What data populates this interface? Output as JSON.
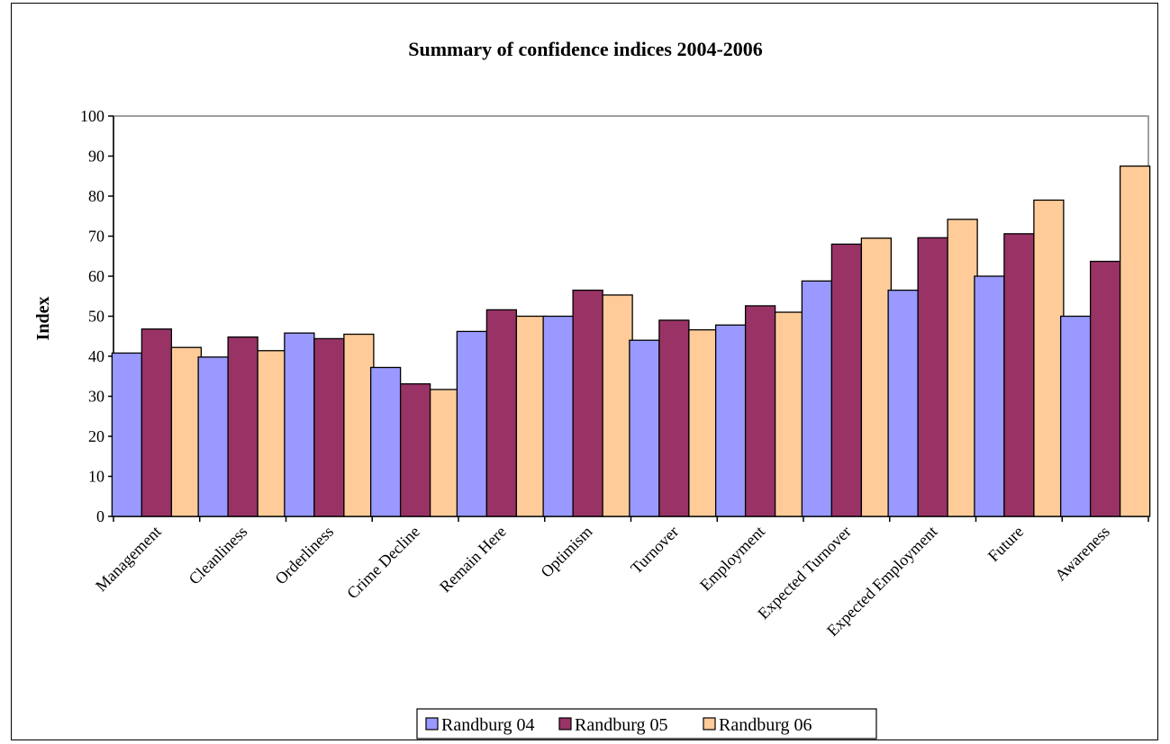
{
  "chart_data": {
    "type": "bar",
    "title": "Summary of confidence indices 2004-2006",
    "xlabel": "",
    "ylabel": "Index",
    "ylim": [
      0,
      100
    ],
    "yticks": [
      0,
      10,
      20,
      30,
      40,
      50,
      60,
      70,
      80,
      90,
      100
    ],
    "grid": false,
    "legend_position": "bottom",
    "categories": [
      "Management",
      "Cleanliness",
      "Orderliness",
      "Crime Decline",
      "Remain Here",
      "Optimism",
      "Turnover",
      "Employment",
      "Expected Turnover",
      "Expected Employment",
      "Future",
      "Awareness"
    ],
    "series": [
      {
        "name": "Randburg 04",
        "color": "#9999ff",
        "values": [
          40.8,
          39.8,
          45.8,
          37.2,
          46.2,
          50.0,
          44.0,
          47.8,
          58.8,
          56.5,
          60.0,
          50.0
        ]
      },
      {
        "name": "Randburg 05",
        "color": "#993366",
        "values": [
          46.8,
          44.8,
          44.4,
          33.1,
          51.6,
          56.5,
          49.0,
          52.6,
          68.0,
          69.6,
          70.6,
          63.7
        ]
      },
      {
        "name": "Randburg 06",
        "color": "#ffcc99",
        "values": [
          42.2,
          41.4,
          45.5,
          31.7,
          50.0,
          55.3,
          46.6,
          51.0,
          69.5,
          74.2,
          79.0,
          87.5
        ]
      }
    ]
  }
}
